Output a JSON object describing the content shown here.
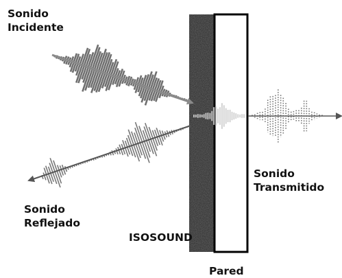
{
  "labels": {
    "incident": [
      "Sonido",
      "Incidente"
    ],
    "reflected": [
      "Sonido",
      "Reflejado"
    ],
    "transmitted": [
      "Sonido",
      "Transmitido"
    ],
    "isosound": "ISOSOUND",
    "wall": "Pared"
  },
  "colors": {
    "text": "#111111",
    "incident_wave": "#6f6f6f",
    "incident_arrow": "#8a8a8a",
    "reflected_wave": "#777777",
    "reflected_arrow": "#555555",
    "transmitted_wave": "#777777",
    "insulation_texture": "#333333",
    "wall_outline": "#000000"
  },
  "icons": {
    "incident_arrow": "arrow-right-down-icon",
    "reflected_arrow": "arrow-left-down-icon",
    "transmitted_arrow": "arrow-right-icon"
  }
}
